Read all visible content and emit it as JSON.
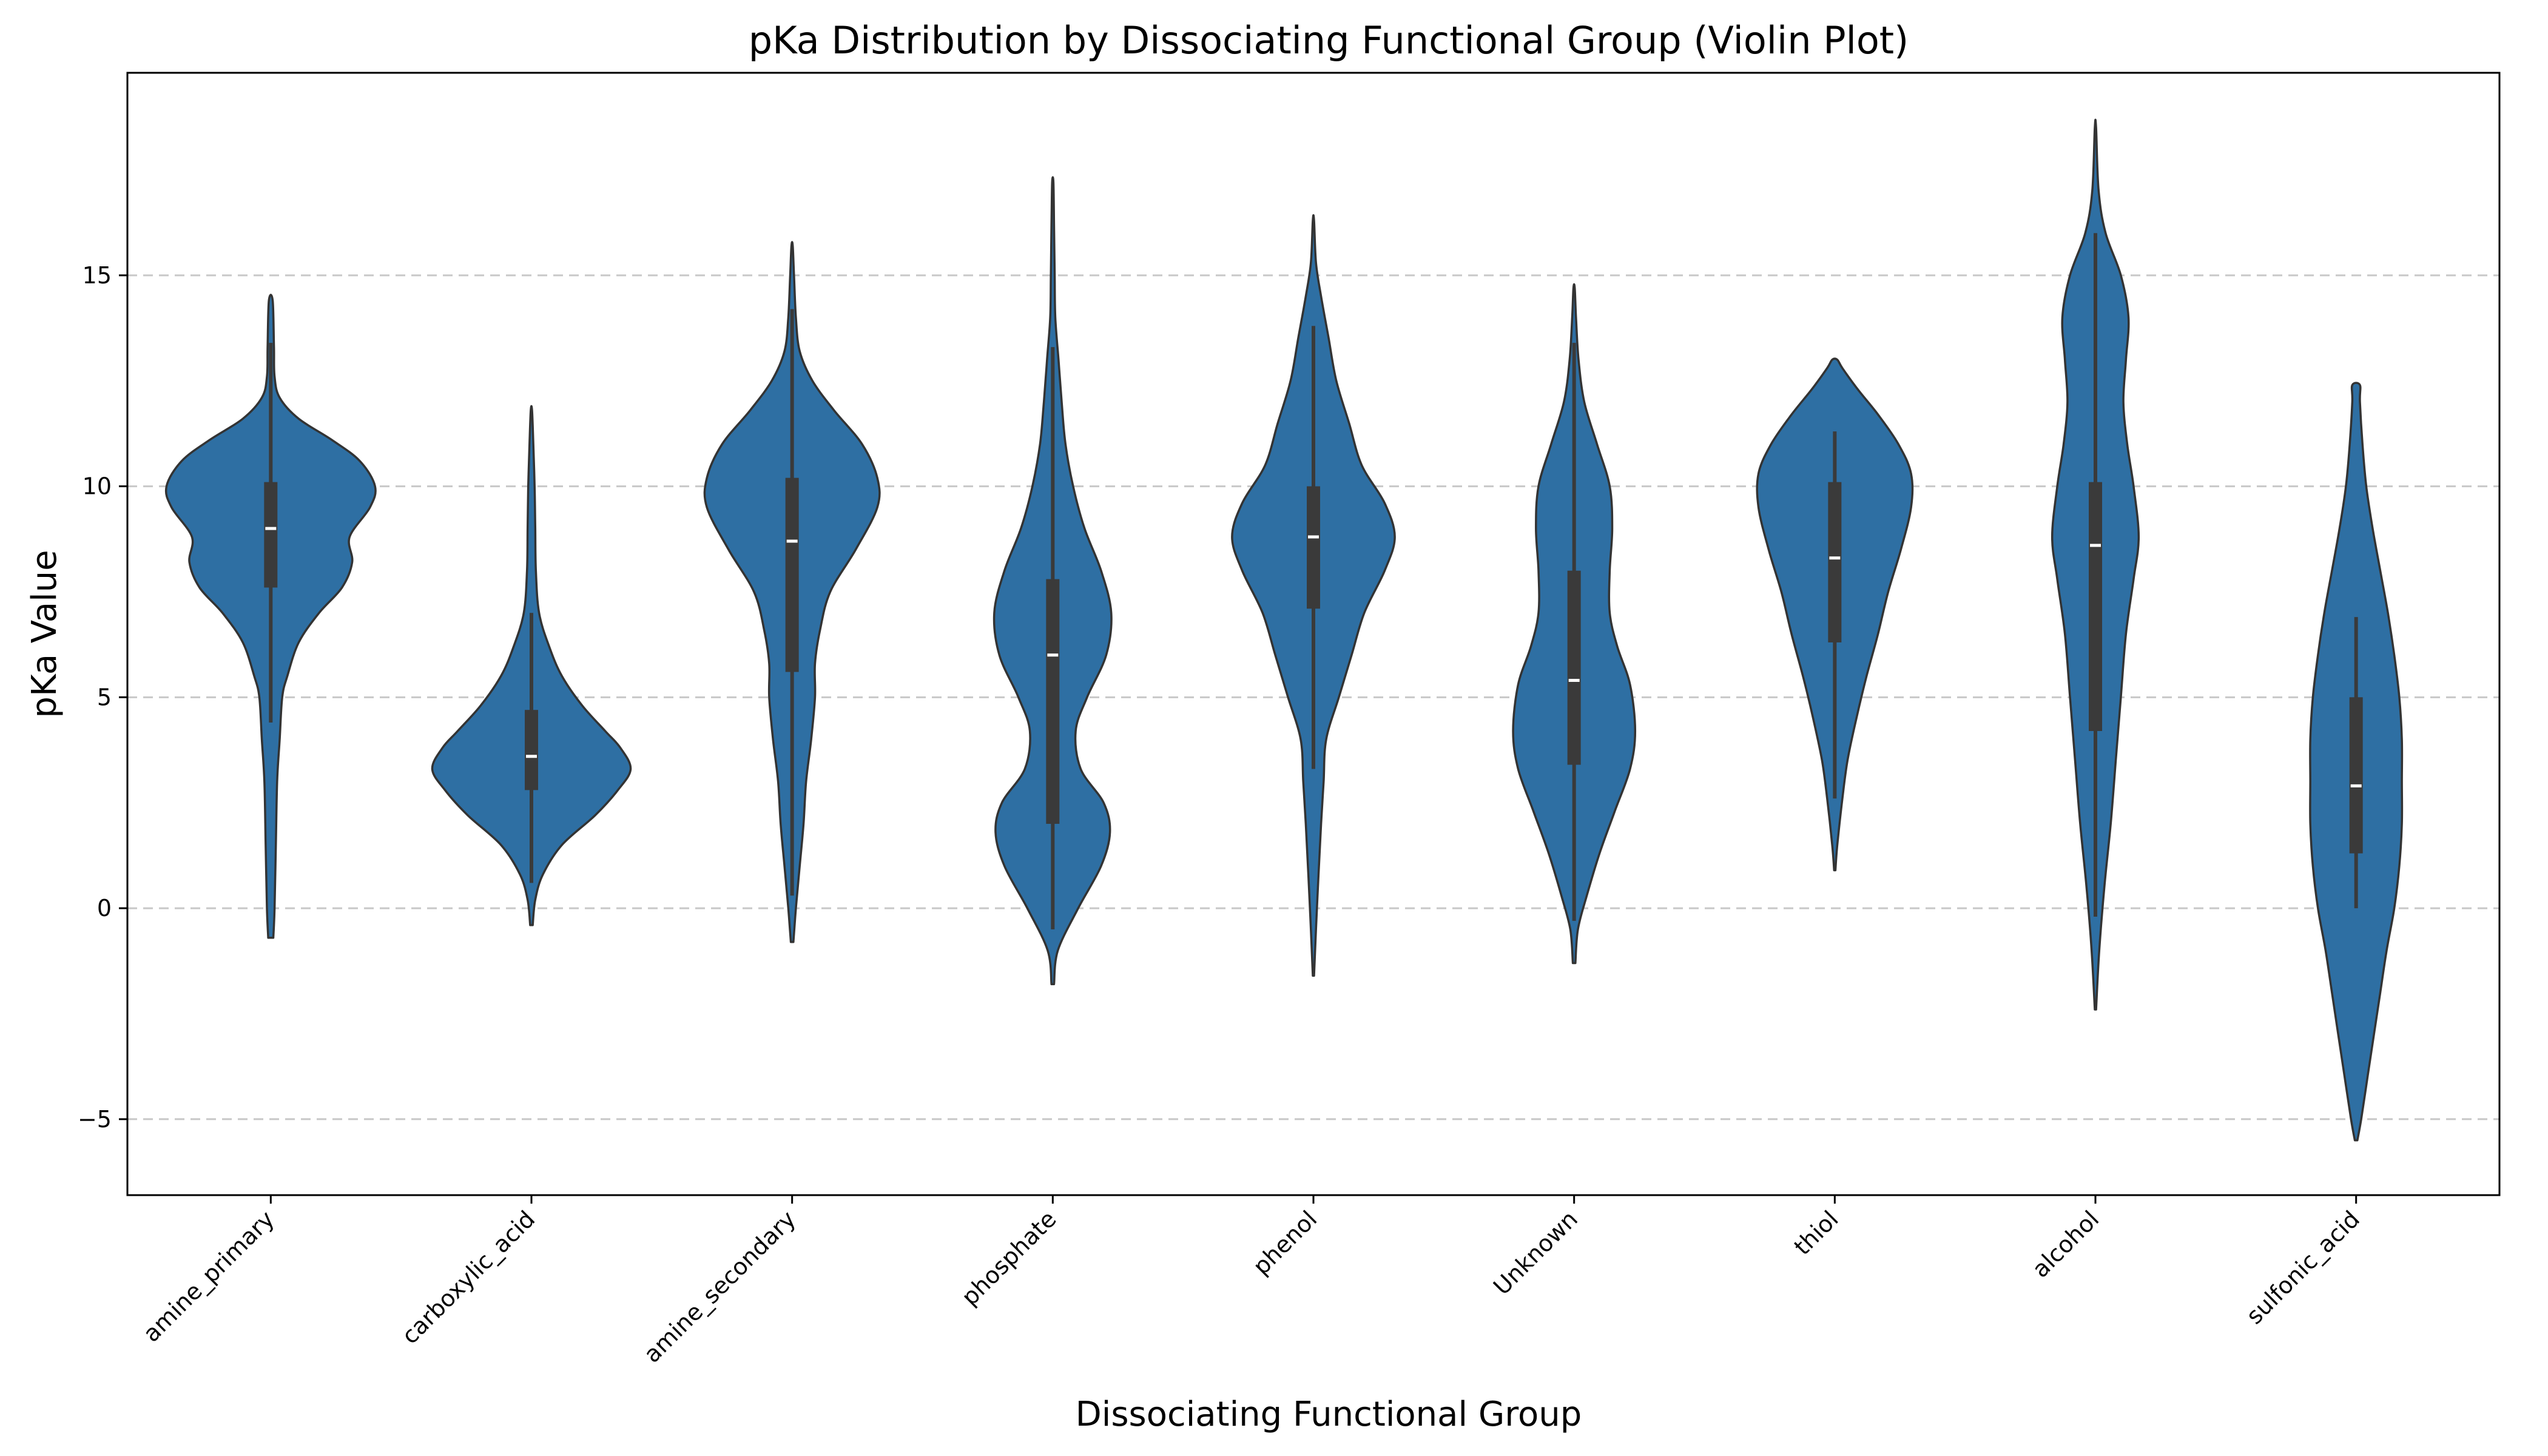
{
  "chart_data": {
    "type": "violin",
    "title": "pKa Distribution by Dissociating Functional Group (Violin Plot)",
    "xlabel": "Dissociating Functional Group",
    "ylabel": "pKa Value",
    "ylim": [
      -6.8,
      19.8
    ],
    "yticks": [
      -5,
      0,
      5,
      10,
      15
    ],
    "ytick_labels": [
      "−5",
      "0",
      "5",
      "10",
      "15"
    ],
    "grid": "y-dashed",
    "colors": {
      "violin_fill": "#2e6fa3",
      "violin_edge": "#333333",
      "box": "#3a3a3a",
      "median": "#ffffff",
      "grid": "#c8c8c8"
    },
    "categories": [
      "amine_primary",
      "carboxylic_acid",
      "amine_secondary",
      "phosphate",
      "phenol",
      "Unknown",
      "thiol",
      "alcohol",
      "sulfonic_acid"
    ],
    "groups": [
      {
        "name": "amine_primary",
        "min": -0.7,
        "max": 14.4,
        "q1": 7.6,
        "median": 9.0,
        "q3": 10.1,
        "whisker_low": 4.4,
        "whisker_high": 13.4,
        "density": [
          [
            -0.7,
            0.02
          ],
          [
            0.0,
            0.03
          ],
          [
            1.5,
            0.04
          ],
          [
            3.0,
            0.05
          ],
          [
            4.0,
            0.07
          ],
          [
            5.0,
            0.09
          ],
          [
            5.5,
            0.13
          ],
          [
            6.3,
            0.22
          ],
          [
            7.0,
            0.38
          ],
          [
            7.6,
            0.56
          ],
          [
            8.2,
            0.64
          ],
          [
            8.8,
            0.62
          ],
          [
            9.5,
            0.78
          ],
          [
            10.0,
            0.82
          ],
          [
            10.6,
            0.7
          ],
          [
            11.1,
            0.48
          ],
          [
            11.6,
            0.22
          ],
          [
            12.1,
            0.07
          ],
          [
            12.6,
            0.03
          ],
          [
            13.3,
            0.025
          ],
          [
            14.4,
            0.015
          ]
        ]
      },
      {
        "name": "carboxylic_acid",
        "min": -0.4,
        "max": 11.8,
        "q1": 2.8,
        "median": 3.6,
        "q3": 4.7,
        "whisker_low": 0.6,
        "whisker_high": 7.0,
        "density": [
          [
            -0.4,
            0.01
          ],
          [
            0.2,
            0.03
          ],
          [
            0.8,
            0.09
          ],
          [
            1.5,
            0.24
          ],
          [
            2.2,
            0.5
          ],
          [
            2.8,
            0.68
          ],
          [
            3.3,
            0.78
          ],
          [
            3.8,
            0.7
          ],
          [
            4.2,
            0.58
          ],
          [
            4.8,
            0.4
          ],
          [
            5.5,
            0.24
          ],
          [
            6.2,
            0.14
          ],
          [
            7.0,
            0.06
          ],
          [
            8.0,
            0.035
          ],
          [
            9.0,
            0.03
          ],
          [
            10.0,
            0.025
          ],
          [
            11.0,
            0.015
          ],
          [
            11.8,
            0.005
          ]
        ]
      },
      {
        "name": "amine_secondary",
        "min": -0.8,
        "max": 15.7,
        "q1": 5.6,
        "median": 8.7,
        "q3": 10.2,
        "whisker_low": 0.3,
        "whisker_high": 14.2,
        "density": [
          [
            -0.8,
            0.01
          ],
          [
            0.0,
            0.03
          ],
          [
            1.0,
            0.06
          ],
          [
            2.0,
            0.09
          ],
          [
            3.0,
            0.11
          ],
          [
            4.0,
            0.15
          ],
          [
            5.0,
            0.18
          ],
          [
            5.8,
            0.18
          ],
          [
            6.6,
            0.22
          ],
          [
            7.5,
            0.3
          ],
          [
            8.5,
            0.5
          ],
          [
            9.5,
            0.67
          ],
          [
            10.2,
            0.67
          ],
          [
            11.0,
            0.55
          ],
          [
            11.8,
            0.33
          ],
          [
            12.5,
            0.16
          ],
          [
            13.2,
            0.06
          ],
          [
            14.0,
            0.03
          ],
          [
            15.0,
            0.015
          ],
          [
            15.7,
            0.005
          ]
        ]
      },
      {
        "name": "phosphate",
        "min": -1.8,
        "max": 17.2,
        "q1": 2.0,
        "median": 6.0,
        "q3": 7.8,
        "whisker_low": -0.5,
        "whisker_high": 13.3,
        "density": [
          [
            -1.8,
            0.01
          ],
          [
            -1.0,
            0.04
          ],
          [
            0.0,
            0.2
          ],
          [
            1.0,
            0.38
          ],
          [
            1.8,
            0.45
          ],
          [
            2.5,
            0.4
          ],
          [
            3.3,
            0.22
          ],
          [
            4.2,
            0.18
          ],
          [
            5.0,
            0.27
          ],
          [
            6.0,
            0.42
          ],
          [
            7.0,
            0.46
          ],
          [
            8.0,
            0.38
          ],
          [
            9.0,
            0.25
          ],
          [
            10.0,
            0.16
          ],
          [
            11.0,
            0.1
          ],
          [
            12.0,
            0.07
          ],
          [
            13.0,
            0.045
          ],
          [
            14.0,
            0.02
          ],
          [
            15.0,
            0.015
          ],
          [
            16.2,
            0.01
          ],
          [
            17.2,
            0.005
          ]
        ]
      },
      {
        "name": "phenol",
        "min": -1.6,
        "max": 16.3,
        "q1": 7.1,
        "median": 8.8,
        "q3": 10.0,
        "whisker_low": 3.3,
        "whisker_high": 13.8,
        "density": [
          [
            -1.6,
            0.005
          ],
          [
            -0.5,
            0.02
          ],
          [
            0.8,
            0.04
          ],
          [
            2.0,
            0.06
          ],
          [
            3.0,
            0.08
          ],
          [
            4.0,
            0.1
          ],
          [
            5.0,
            0.2
          ],
          [
            6.0,
            0.3
          ],
          [
            7.0,
            0.4
          ],
          [
            8.0,
            0.56
          ],
          [
            8.8,
            0.64
          ],
          [
            9.6,
            0.56
          ],
          [
            10.5,
            0.38
          ],
          [
            11.5,
            0.28
          ],
          [
            12.5,
            0.18
          ],
          [
            13.5,
            0.12
          ],
          [
            14.5,
            0.06
          ],
          [
            15.3,
            0.02
          ],
          [
            16.3,
            0.005
          ]
        ]
      },
      {
        "name": "Unknown",
        "min": -1.3,
        "max": 14.7,
        "q1": 3.4,
        "median": 5.4,
        "q3": 8.0,
        "whisker_low": -0.3,
        "whisker_high": 13.4,
        "density": [
          [
            -1.3,
            0.01
          ],
          [
            -0.5,
            0.03
          ],
          [
            0.3,
            0.1
          ],
          [
            1.3,
            0.2
          ],
          [
            2.3,
            0.32
          ],
          [
            3.3,
            0.44
          ],
          [
            4.2,
            0.48
          ],
          [
            5.3,
            0.44
          ],
          [
            6.2,
            0.34
          ],
          [
            7.0,
            0.28
          ],
          [
            8.0,
            0.28
          ],
          [
            9.0,
            0.3
          ],
          [
            10.0,
            0.28
          ],
          [
            11.0,
            0.18
          ],
          [
            12.0,
            0.08
          ],
          [
            13.0,
            0.035
          ],
          [
            14.0,
            0.015
          ],
          [
            14.7,
            0.005
          ]
        ]
      },
      {
        "name": "thiol",
        "min": 0.9,
        "max": 13.0,
        "q1": 6.3,
        "median": 8.3,
        "q3": 10.1,
        "whisker_low": 2.6,
        "whisker_high": 11.3,
        "density": [
          [
            0.9,
            0.005
          ],
          [
            1.5,
            0.02
          ],
          [
            2.6,
            0.06
          ],
          [
            3.5,
            0.1
          ],
          [
            4.5,
            0.17
          ],
          [
            5.5,
            0.25
          ],
          [
            6.5,
            0.34
          ],
          [
            7.5,
            0.42
          ],
          [
            8.5,
            0.52
          ],
          [
            9.5,
            0.6
          ],
          [
            10.3,
            0.6
          ],
          [
            11.0,
            0.5
          ],
          [
            11.7,
            0.34
          ],
          [
            12.3,
            0.18
          ],
          [
            12.8,
            0.06
          ],
          [
            13.0,
            0.02
          ]
        ]
      },
      {
        "name": "alcohol",
        "min": -2.4,
        "max": 18.5,
        "q1": 4.2,
        "median": 8.6,
        "q3": 10.1,
        "whisker_low": -0.2,
        "whisker_high": 16.0,
        "density": [
          [
            -2.4,
            0.005
          ],
          [
            -1.0,
            0.03
          ],
          [
            0.5,
            0.07
          ],
          [
            2.0,
            0.12
          ],
          [
            3.5,
            0.16
          ],
          [
            5.0,
            0.2
          ],
          [
            6.5,
            0.24
          ],
          [
            7.8,
            0.3
          ],
          [
            8.8,
            0.34
          ],
          [
            10.0,
            0.3
          ],
          [
            11.0,
            0.25
          ],
          [
            12.0,
            0.22
          ],
          [
            13.0,
            0.24
          ],
          [
            14.0,
            0.26
          ],
          [
            15.0,
            0.2
          ],
          [
            16.0,
            0.08
          ],
          [
            17.0,
            0.025
          ],
          [
            18.5,
            0.005
          ]
        ]
      },
      {
        "name": "sulfonic_acid",
        "min": -5.5,
        "max": 12.4,
        "q1": 1.3,
        "median": 2.9,
        "q3": 5.0,
        "whisker_low": 0.0,
        "whisker_high": 6.9,
        "density": [
          [
            -5.5,
            0.01
          ],
          [
            -5.0,
            0.04
          ],
          [
            -4.0,
            0.09
          ],
          [
            -3.0,
            0.14
          ],
          [
            -2.0,
            0.19
          ],
          [
            -1.0,
            0.24
          ],
          [
            0.0,
            0.3
          ],
          [
            1.0,
            0.34
          ],
          [
            2.0,
            0.36
          ],
          [
            3.0,
            0.36
          ],
          [
            4.0,
            0.36
          ],
          [
            5.0,
            0.34
          ],
          [
            6.0,
            0.3
          ],
          [
            7.0,
            0.25
          ],
          [
            8.0,
            0.19
          ],
          [
            9.0,
            0.13
          ],
          [
            10.0,
            0.08
          ],
          [
            11.0,
            0.05
          ],
          [
            12.0,
            0.03
          ],
          [
            12.4,
            0.03
          ]
        ]
      }
    ]
  }
}
